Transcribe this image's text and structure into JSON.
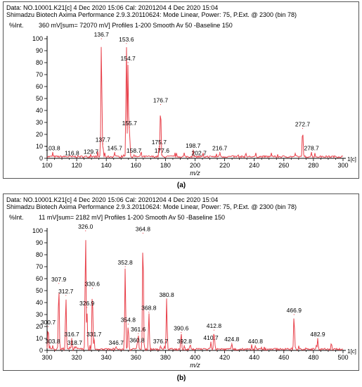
{
  "charts": [
    {
      "header_line1": "Data: NO.10001.K21[c] 4 Dec 2020 15:06 Cal: 20201204 4 Dec 2020 15:04",
      "header_line2": "Shimadzu Biotech Axima Performance 2.9.3.20110624: Mode Linear, Power: 75, P.Ext. @ 2300 (bin 78)",
      "yunit": "%Int.",
      "intensity_info": "360 mV[sum= 72070 mV]  Profiles 1-200 Smooth Av 50 -Baseline 150",
      "panel_label": "(a)",
      "axis_end_label": "1[c]"
    },
    {
      "header_line1": "Data: NO.10001.K21[c] 4 Dec 2020 15:06 Cal: 20201204 4 Dec 2020 15:04",
      "header_line2": "Shimadzu Biotech Axima Performance 2.9.3.20110624: Mode Linear, Power: 75, P.Ext. @ 2300 (bin 78)",
      "yunit": "%Int.",
      "intensity_info": "11 mV[sum= 2182 mV]  Profiles 1-200 Smooth Av 50 -Baseline 150",
      "panel_label": "(b)",
      "axis_end_label": "1[c]"
    }
  ],
  "chart_data": [
    {
      "type": "line",
      "xlabel": "m/z",
      "ylabel": "%Int.",
      "xlim": [
        100,
        300
      ],
      "ylim": [
        0,
        100
      ],
      "xticks": [
        100,
        120,
        140,
        160,
        180,
        200,
        220,
        240,
        260,
        280,
        300
      ],
      "yticks": [
        0,
        10,
        20,
        30,
        40,
        50,
        60,
        70,
        80,
        90,
        100
      ],
      "color": "#e8404a",
      "peaks": [
        {
          "x": 103.8,
          "y": 5,
          "label": "103.8"
        },
        {
          "x": 116.8,
          "y": 1,
          "label": "116.8"
        },
        {
          "x": 129.7,
          "y": 2,
          "label": "129.7"
        },
        {
          "x": 136.7,
          "y": 100,
          "label": "136.7"
        },
        {
          "x": 137.7,
          "y": 12,
          "label": "137.7"
        },
        {
          "x": 145.7,
          "y": 5,
          "label": "145.7"
        },
        {
          "x": 153.6,
          "y": 96,
          "label": "153.6"
        },
        {
          "x": 154.7,
          "y": 80,
          "label": "154.7"
        },
        {
          "x": 155.7,
          "y": 26,
          "label": "155.7"
        },
        {
          "x": 158.7,
          "y": 3,
          "label": "158.7"
        },
        {
          "x": 175.7,
          "y": 10,
          "label": "175.7"
        },
        {
          "x": 176.7,
          "y": 45,
          "label": "176.7"
        },
        {
          "x": 177.6,
          "y": 3,
          "label": "177.6"
        },
        {
          "x": 198.7,
          "y": 7,
          "label": "198.7"
        },
        {
          "x": 202.7,
          "y": 1,
          "label": "202.7"
        },
        {
          "x": 216.7,
          "y": 5,
          "label": "216.7"
        },
        {
          "x": 272.7,
          "y": 25,
          "label": "272.7"
        },
        {
          "x": 278.7,
          "y": 5,
          "label": "278.7"
        }
      ]
    },
    {
      "type": "line",
      "xlabel": "m/z",
      "ylabel": "%Int.",
      "xlim": [
        300,
        500
      ],
      "ylim": [
        0,
        100
      ],
      "xticks": [
        300,
        320,
        340,
        360,
        380,
        400,
        420,
        440,
        460,
        480,
        500
      ],
      "yticks": [
        0,
        10,
        20,
        30,
        40,
        50,
        60,
        70,
        80,
        90,
        100
      ],
      "color": "#e8404a",
      "peaks": [
        {
          "x": 300.7,
          "y": 20,
          "label": "300.7"
        },
        {
          "x": 303.8,
          "y": 4,
          "label": "303.8"
        },
        {
          "x": 307.9,
          "y": 56,
          "label": "307.9"
        },
        {
          "x": 312.7,
          "y": 46,
          "label": "312.7"
        },
        {
          "x": 316.7,
          "y": 10,
          "label": "316.7"
        },
        {
          "x": 318.7,
          "y": 3,
          "label": "318.7"
        },
        {
          "x": 326.0,
          "y": 100,
          "label": "326.0"
        },
        {
          "x": 326.9,
          "y": 36,
          "label": "326.9"
        },
        {
          "x": 330.6,
          "y": 52,
          "label": "330.6"
        },
        {
          "x": 331.7,
          "y": 10,
          "label": "331.7"
        },
        {
          "x": 346.7,
          "y": 3,
          "label": "346.7"
        },
        {
          "x": 352.8,
          "y": 70,
          "label": "352.8"
        },
        {
          "x": 354.8,
          "y": 22,
          "label": "354.8"
        },
        {
          "x": 360.8,
          "y": 5,
          "label": "360.8"
        },
        {
          "x": 361.6,
          "y": 14,
          "label": "361.6"
        },
        {
          "x": 364.8,
          "y": 98,
          "label": "364.8"
        },
        {
          "x": 368.8,
          "y": 32,
          "label": "368.8"
        },
        {
          "x": 376.7,
          "y": 4,
          "label": "376.7"
        },
        {
          "x": 380.8,
          "y": 43,
          "label": "380.8"
        },
        {
          "x": 390.6,
          "y": 15,
          "label": "390.6"
        },
        {
          "x": 392.8,
          "y": 4,
          "label": "392.8"
        },
        {
          "x": 410.7,
          "y": 7,
          "label": "410.7"
        },
        {
          "x": 412.8,
          "y": 17,
          "label": "412.8"
        },
        {
          "x": 424.8,
          "y": 6,
          "label": "424.8"
        },
        {
          "x": 440.8,
          "y": 4,
          "label": "440.8"
        },
        {
          "x": 466.9,
          "y": 30,
          "label": "466.9"
        },
        {
          "x": 482.9,
          "y": 10,
          "label": "482.9"
        }
      ]
    }
  ]
}
